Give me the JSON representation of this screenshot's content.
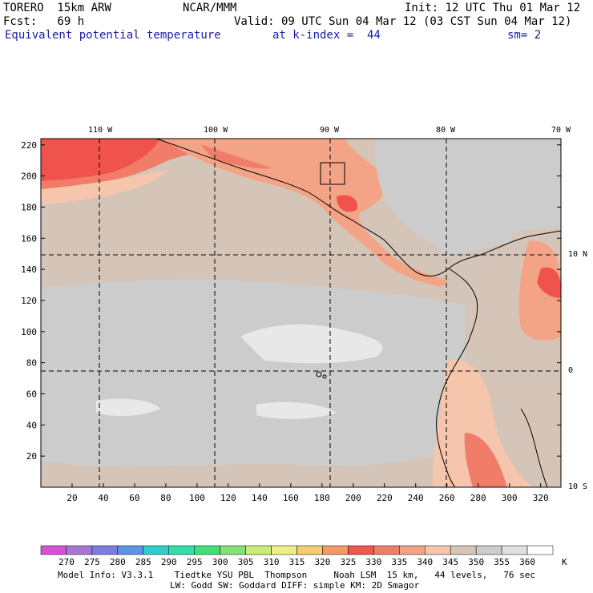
{
  "header": {
    "model": "TORERO  15km ARW",
    "org": "NCAR/MMM",
    "init": "Init: 12 UTC Thu 01 Mar 12",
    "fcst": "Fcst:   69 h",
    "valid": "Valid: 09 UTC Sun 04 Mar 12 (03 CST Sun 04 Mar 12)",
    "field": "Equivalent potential temperature",
    "level": "at k-index =  44",
    "sm": "sm= 2"
  },
  "map": {
    "top_lon_labels": [
      "110 W",
      "100 W",
      "90 W",
      "80 W",
      "70 W"
    ],
    "right_lat_labels": [
      "10 N",
      "0",
      "10 S"
    ],
    "y_ticks": [
      "20",
      "40",
      "60",
      "80",
      "100",
      "120",
      "140",
      "160",
      "180",
      "200",
      "220"
    ],
    "x_ticks": [
      "20",
      "40",
      "60",
      "80",
      "100",
      "120",
      "140",
      "160",
      "180",
      "200",
      "220",
      "240",
      "260",
      "280",
      "300",
      "320"
    ],
    "colors": {
      "warm_max": "#f0524c",
      "warm_high": "#f27c6a",
      "warm": "#f4a486",
      "warm_light": "#f5c6ab",
      "tan": "#d5c5b8",
      "gray": "#cccccc",
      "light": "#e8e8e8",
      "white": "#ffffff"
    }
  },
  "colorbar": {
    "values": [
      "270",
      "275",
      "280",
      "285",
      "290",
      "295",
      "300",
      "305",
      "310",
      "315",
      "320",
      "325",
      "330",
      "335",
      "340",
      "345",
      "350",
      "355",
      "360"
    ],
    "unit": "K",
    "colors": [
      "#d653d6",
      "#a777d6",
      "#7d7ee2",
      "#5f93e6",
      "#2fcfcf",
      "#2fe0a8",
      "#3fe07a",
      "#86e07a",
      "#c8ee7a",
      "#eeee86",
      "#f5cc70",
      "#f59a64",
      "#f2574e",
      "#f27c6a",
      "#f4a486",
      "#f5c6ab",
      "#d5c5b8",
      "#cccccc",
      "#e0e0e0",
      "#ffffff"
    ]
  },
  "footer": {
    "line1": "Model Info: V3.3.1    Tiedtke YSU PBL  Thompson     Noah LSM  15 km,   44 levels,   76 sec",
    "line2": "LW: Godd SW: Goddard DIFF: simple KM: 2D Smagor"
  }
}
